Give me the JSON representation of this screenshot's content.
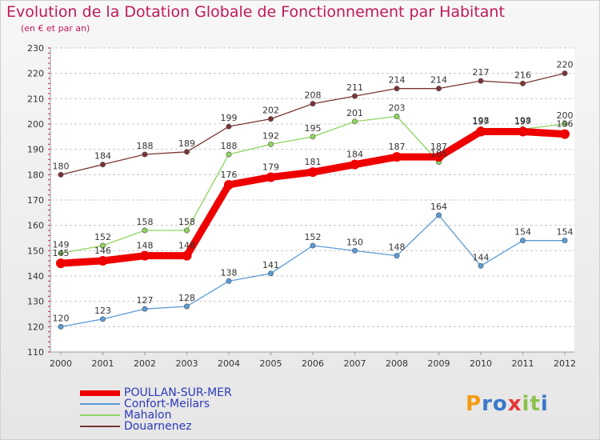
{
  "header": {
    "title": "Evolution de la Dotation Globale de Fonctionnement par Habitant",
    "subtitle": "(en € et par an)"
  },
  "logo": {
    "text": "Proxiti",
    "letters": [
      "P",
      "r",
      "o",
      "x",
      "i",
      "t",
      "i"
    ],
    "colors": [
      "#f39c12",
      "#3a78c9",
      "#3a78c9",
      "#e53935",
      "#8bc34a",
      "#8bc34a",
      "#3a78c9"
    ]
  },
  "chart_data": {
    "type": "line",
    "title": "Evolution de la Dotation Globale de Fonctionnement par Habitant",
    "subtitle": "(en € et par an)",
    "xlabel": "",
    "ylabel": "",
    "x": [
      "2000",
      "2001",
      "2002",
      "2003",
      "2004",
      "2005",
      "2006",
      "2007",
      "2008",
      "2009",
      "2010",
      "2011",
      "2012"
    ],
    "ylim": [
      110,
      230
    ],
    "yticks": [
      "110",
      "120",
      "130",
      "140",
      "150",
      "160",
      "170",
      "180",
      "190",
      "200",
      "210",
      "220",
      "230"
    ],
    "grid": "horizontal dashed",
    "legend_position": "bottom-left",
    "series": [
      {
        "name": "POULLAN-SUR-MER",
        "color": "#ee0000",
        "values": [
          145,
          146,
          148,
          148,
          176,
          179,
          181,
          184,
          187,
          187,
          197,
          197,
          196
        ],
        "labels": [
          "145",
          "146",
          "148",
          "148",
          "176",
          "179",
          "181",
          "184",
          "187",
          "187",
          "197",
          "197",
          "196"
        ]
      },
      {
        "name": "Confort-Meilars",
        "color": "#5b9bd5",
        "values": [
          120,
          123,
          127,
          128,
          138,
          141,
          152,
          150,
          148,
          164,
          144,
          154,
          154
        ],
        "labels": [
          "120",
          "123",
          "127",
          "128",
          "138",
          "141",
          "152",
          "150",
          "148",
          "164",
          "144",
          "154",
          "154"
        ]
      },
      {
        "name": "Mahalon",
        "color": "#8fd45f",
        "values": [
          149,
          152,
          158,
          158,
          188,
          192,
          195,
          201,
          203,
          185,
          198,
          198,
          200
        ],
        "labels": [
          "149",
          "152",
          "158",
          "158",
          "188",
          "192",
          "195",
          "201",
          "203",
          "185",
          "198",
          "198",
          "200"
        ]
      },
      {
        "name": "Douarnenez",
        "color": "#7b3434",
        "values": [
          180,
          184,
          188,
          189,
          199,
          202,
          208,
          211,
          214,
          214,
          217,
          216,
          220
        ],
        "labels": [
          "180",
          "184",
          "188",
          "189",
          "199",
          "202",
          "208",
          "211",
          "214",
          "214",
          "217",
          "216",
          "220"
        ]
      }
    ]
  }
}
